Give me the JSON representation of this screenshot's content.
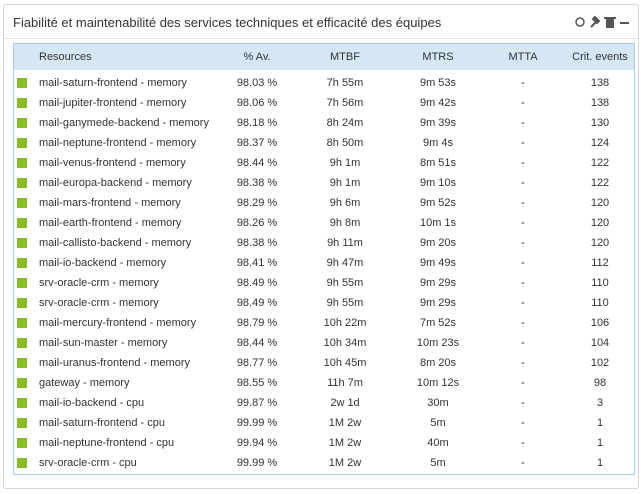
{
  "header": {
    "title": "Fiabilité et maintenabilité des services techniques et efficacité des équipes"
  },
  "table": {
    "columns": [
      "Resources",
      "% Av.",
      "MTBF",
      "MTRS",
      "MTTA",
      "Crit. events"
    ],
    "rows": [
      [
        "mail-saturn-frontend - memory",
        "98.03 %",
        "7h 55m",
        "9m 53s",
        "-",
        "138"
      ],
      [
        "mail-jupiter-frontend - memory",
        "98.06 %",
        "7h 56m",
        "9m 42s",
        "-",
        "138"
      ],
      [
        "mail-ganymede-backend - memory",
        "98.18 %",
        "8h 24m",
        "9m 39s",
        "-",
        "130"
      ],
      [
        "mail-neptune-frontend - memory",
        "98.37 %",
        "8h 50m",
        "9m 4s",
        "-",
        "124"
      ],
      [
        "mail-venus-frontend - memory",
        "98.44 %",
        "9h 1m",
        "8m 51s",
        "-",
        "122"
      ],
      [
        "mail-europa-backend - memory",
        "98.38 %",
        "9h 1m",
        "9m 10s",
        "-",
        "122"
      ],
      [
        "mail-mars-frontend - memory",
        "98.29 %",
        "9h 6m",
        "9m 52s",
        "-",
        "120"
      ],
      [
        "mail-earth-frontend - memory",
        "98.26 %",
        "9h 8m",
        "10m 1s",
        "-",
        "120"
      ],
      [
        "mail-callisto-backend - memory",
        "98.38 %",
        "9h 11m",
        "9m 20s",
        "-",
        "120"
      ],
      [
        "mail-io-backend - memory",
        "98.41 %",
        "9h 47m",
        "9m 49s",
        "-",
        "112"
      ],
      [
        "srv-oracle-crm - memory",
        "98.49 %",
        "9h 55m",
        "9m 29s",
        "-",
        "110"
      ],
      [
        "srv-oracle-crm - memory",
        "98.49 %",
        "9h 55m",
        "9m 29s",
        "-",
        "110"
      ],
      [
        "mail-mercury-frontend - memory",
        "98.79 %",
        "10h 22m",
        "7m 52s",
        "-",
        "106"
      ],
      [
        "mail-sun-master - memory",
        "98.44 %",
        "10h 34m",
        "10m 23s",
        "-",
        "104"
      ],
      [
        "mail-uranus-frontend - memory",
        "98.77 %",
        "10h 45m",
        "8m 20s",
        "-",
        "102"
      ],
      [
        "gateway - memory",
        "98.55 %",
        "11h 7m",
        "10m 12s",
        "-",
        "98"
      ],
      [
        "mail-io-backend - cpu",
        "99.87 %",
        "2w 1d",
        "30m",
        "-",
        "3"
      ],
      [
        "mail-saturn-frontend - cpu",
        "99.99 %",
        "1M 2w",
        "5m",
        "-",
        "1"
      ],
      [
        "mail-neptune-frontend - cpu",
        "99.94 %",
        "1M 2w",
        "40m",
        "-",
        "1"
      ],
      [
        "srv-oracle-crm - cpu",
        "99.99 %",
        "1M 2w",
        "5m",
        "-",
        "1"
      ]
    ]
  }
}
